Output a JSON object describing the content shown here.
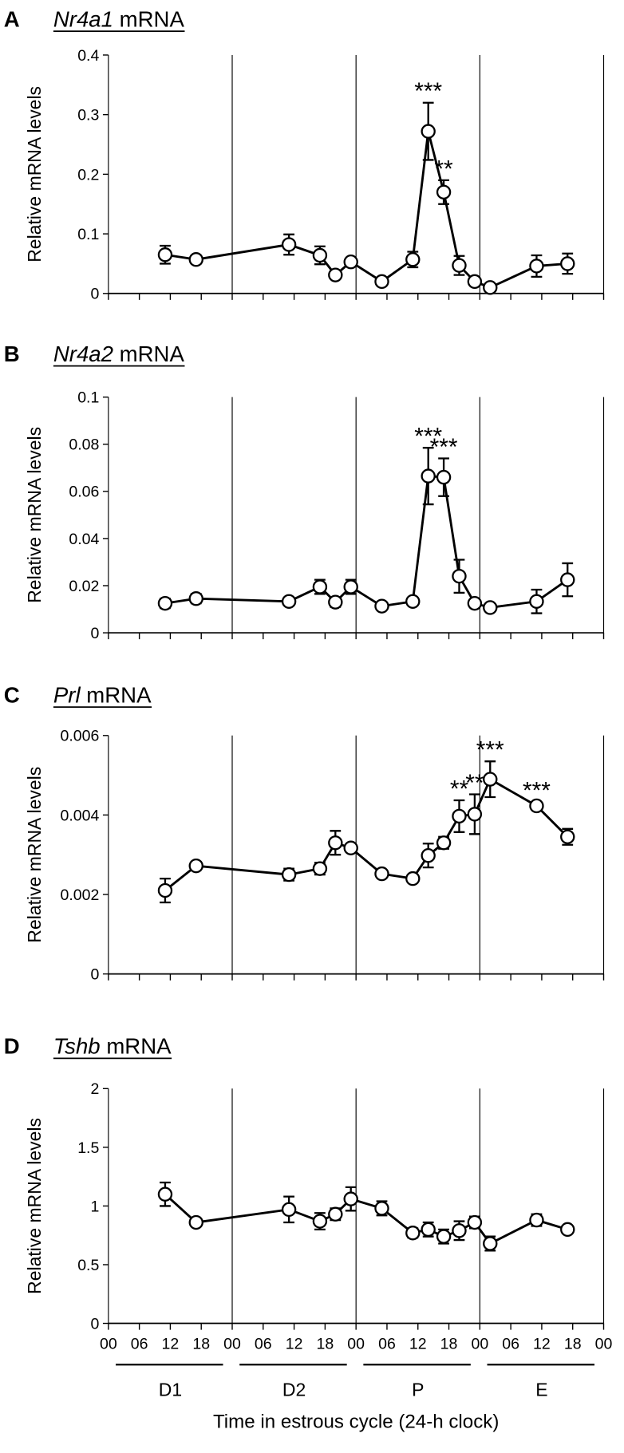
{
  "chart_data": [
    {
      "type": "line",
      "panel": "A",
      "title_italic": "Nr4a1",
      "title": "mRNA",
      "y_label": "Relative mRNA levels",
      "x": [
        11,
        17,
        35,
        41,
        44,
        47,
        53,
        59,
        62,
        65,
        68,
        71,
        74,
        83,
        89
      ],
      "values": [
        0.065,
        0.057,
        0.082,
        0.064,
        0.031,
        0.053,
        0.02,
        0.057,
        0.272,
        0.17,
        0.047,
        0.02,
        0.01,
        0.046,
        0.05
      ],
      "errors": [
        0.015,
        0.007,
        0.017,
        0.015,
        0.005,
        0.005,
        0.004,
        0.013,
        0.048,
        0.02,
        0.016,
        0.004,
        0.003,
        0.018,
        0.017
      ],
      "annotations": [
        {
          "text": "***",
          "point": 8
        },
        {
          "text": "**",
          "point": 9
        }
      ],
      "xlim": [
        0,
        96
      ],
      "xticks": [
        0,
        6,
        12,
        18,
        24,
        30,
        36,
        42,
        48,
        54,
        60,
        66,
        72,
        78,
        84,
        90,
        96
      ],
      "ylim": [
        0,
        0.4
      ],
      "yticks": [
        0,
        0.1,
        0.2,
        0.3,
        0.4
      ],
      "color": "#000000"
    },
    {
      "type": "line",
      "panel": "B",
      "title_italic": "Nr4a2",
      "title": "mRNA",
      "y_label": "Relative mRNA levels",
      "x": [
        11,
        17,
        35,
        41,
        44,
        47,
        53,
        59,
        62,
        65,
        68,
        71,
        74,
        83,
        89
      ],
      "values": [
        0.0125,
        0.0145,
        0.0133,
        0.0195,
        0.013,
        0.0195,
        0.0113,
        0.0133,
        0.0665,
        0.066,
        0.024,
        0.0125,
        0.0107,
        0.0133,
        0.0225
      ],
      "errors": [
        0.002,
        0.002,
        0.001,
        0.003,
        0.002,
        0.003,
        0.001,
        0.001,
        0.012,
        0.008,
        0.007,
        0.001,
        0.001,
        0.005,
        0.007
      ],
      "annotations": [
        {
          "text": "***",
          "point": 8
        },
        {
          "text": "***",
          "point": 9
        }
      ],
      "xlim": [
        0,
        96
      ],
      "xticks": [
        0,
        6,
        12,
        18,
        24,
        30,
        36,
        42,
        48,
        54,
        60,
        66,
        72,
        78,
        84,
        90,
        96
      ],
      "ylim": [
        0,
        0.1
      ],
      "yticks": [
        0,
        0.02,
        0.04,
        0.06,
        0.08,
        0.1
      ],
      "color": "#000000"
    },
    {
      "type": "line",
      "panel": "C",
      "title_italic": "Prl",
      "title": "mRNA",
      "y_label": "Relative mRNA levels",
      "x": [
        11,
        17,
        35,
        41,
        44,
        47,
        53,
        59,
        62,
        65,
        68,
        71,
        74,
        83,
        89
      ],
      "values": [
        0.0021,
        0.00272,
        0.0025,
        0.00265,
        0.0033,
        0.00317,
        0.00252,
        0.0024,
        0.00298,
        0.0033,
        0.00397,
        0.00402,
        0.0049,
        0.00423,
        0.00345
      ],
      "errors": [
        0.0003,
        0.0001,
        0.00015,
        0.00015,
        0.0003,
        0.0001,
        0.0001,
        0.0001,
        0.0003,
        0.00015,
        0.0004,
        0.0005,
        0.00045,
        0.0001,
        0.0002
      ],
      "annotations": [
        {
          "text": "**",
          "point": 10
        },
        {
          "text": "**",
          "point": 11
        },
        {
          "text": "***",
          "point": 12
        },
        {
          "text": "***",
          "point": 13
        }
      ],
      "xlim": [
        0,
        96
      ],
      "xticks": [
        0,
        6,
        12,
        18,
        24,
        30,
        36,
        42,
        48,
        54,
        60,
        66,
        72,
        78,
        84,
        90,
        96
      ],
      "ylim": [
        0,
        0.006
      ],
      "yticks": [
        0,
        0.002,
        0.004,
        0.006
      ],
      "color": "#000000"
    },
    {
      "type": "line",
      "panel": "D",
      "title_italic": "Tshb",
      "title": "mRNA",
      "y_label": "Relative mRNA levels",
      "x_label": "Time in estrous cycle (24-h clock)",
      "phases": [
        "D1",
        "D2",
        "P",
        "E"
      ],
      "x": [
        11,
        17,
        35,
        41,
        44,
        47,
        53,
        59,
        62,
        65,
        68,
        71,
        74,
        83,
        89
      ],
      "values": [
        1.1,
        0.86,
        0.97,
        0.87,
        0.93,
        1.06,
        0.98,
        0.77,
        0.8,
        0.74,
        0.79,
        0.86,
        0.68,
        0.88,
        0.8
      ],
      "errors": [
        0.1,
        0.02,
        0.11,
        0.07,
        0.05,
        0.1,
        0.06,
        0.04,
        0.06,
        0.06,
        0.08,
        0.05,
        0.06,
        0.05,
        0.03
      ],
      "xlim": [
        0,
        96
      ],
      "xticks": [
        {
          "value": 0,
          "label": "00"
        },
        {
          "value": 6,
          "label": "06"
        },
        {
          "value": 12,
          "label": "12"
        },
        {
          "value": 18,
          "label": "18"
        },
        {
          "value": 24,
          "label": "00"
        },
        {
          "value": 30,
          "label": "06"
        },
        {
          "value": 36,
          "label": "12"
        },
        {
          "value": 42,
          "label": "18"
        },
        {
          "value": 48,
          "label": "00"
        },
        {
          "value": 54,
          "label": "06"
        },
        {
          "value": 60,
          "label": "12"
        },
        {
          "value": 66,
          "label": "18"
        },
        {
          "value": 72,
          "label": "00"
        },
        {
          "value": 78,
          "label": "06"
        },
        {
          "value": 84,
          "label": "12"
        },
        {
          "value": 90,
          "label": "18"
        },
        {
          "value": 96,
          "label": "00"
        }
      ],
      "ylim": [
        0,
        2
      ],
      "yticks": [
        0,
        0.5,
        1,
        1.5,
        2
      ],
      "color": "#000000"
    }
  ]
}
